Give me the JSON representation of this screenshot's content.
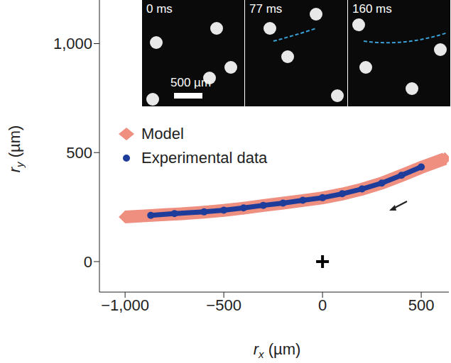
{
  "chart_data": {
    "type": "scatter",
    "xlabel": "rx (µm)",
    "ylabel": "ry (µm)",
    "xlim": [
      -1130,
      640
    ],
    "ylim": [
      -140,
      1200
    ],
    "xticks": [
      {
        "value": -1000,
        "label": "−1,000"
      },
      {
        "value": -500,
        "label": "−500"
      },
      0,
      500
    ],
    "yticks": [
      0,
      500,
      {
        "value": 1000,
        "label": "1,000"
      }
    ],
    "legend": "upper left",
    "series": [
      {
        "name": "Model",
        "color": "#ee8f80",
        "marker": "diamond",
        "line_style": "solid",
        "x": [
          -1000,
          -900,
          -800,
          -700,
          -600,
          -500,
          -400,
          -300,
          -200,
          -100,
          0,
          100,
          200,
          300,
          400,
          500,
          620
        ],
        "values": [
          205,
          210,
          215,
          220,
          227,
          235,
          245,
          257,
          268,
          280,
          292,
          310,
          332,
          360,
          395,
          432,
          472
        ]
      },
      {
        "name": "Experimental data",
        "color": "#1e3c9a",
        "marker": "circle",
        "line_style": "solid",
        "x": [
          -870,
          -750,
          -600,
          -500,
          -400,
          -300,
          -200,
          -100,
          0,
          100,
          200,
          300,
          400,
          500
        ],
        "values": [
          212,
          220,
          228,
          236,
          246,
          258,
          268,
          281,
          293,
          311,
          333,
          360,
          396,
          434
        ]
      }
    ],
    "marker_point": {
      "x": 0,
      "y": 0,
      "marker": "+"
    },
    "inset": {
      "panels": [
        "0 ms",
        "77 ms",
        "160 ms"
      ],
      "scale_bar": "500 µm"
    }
  }
}
